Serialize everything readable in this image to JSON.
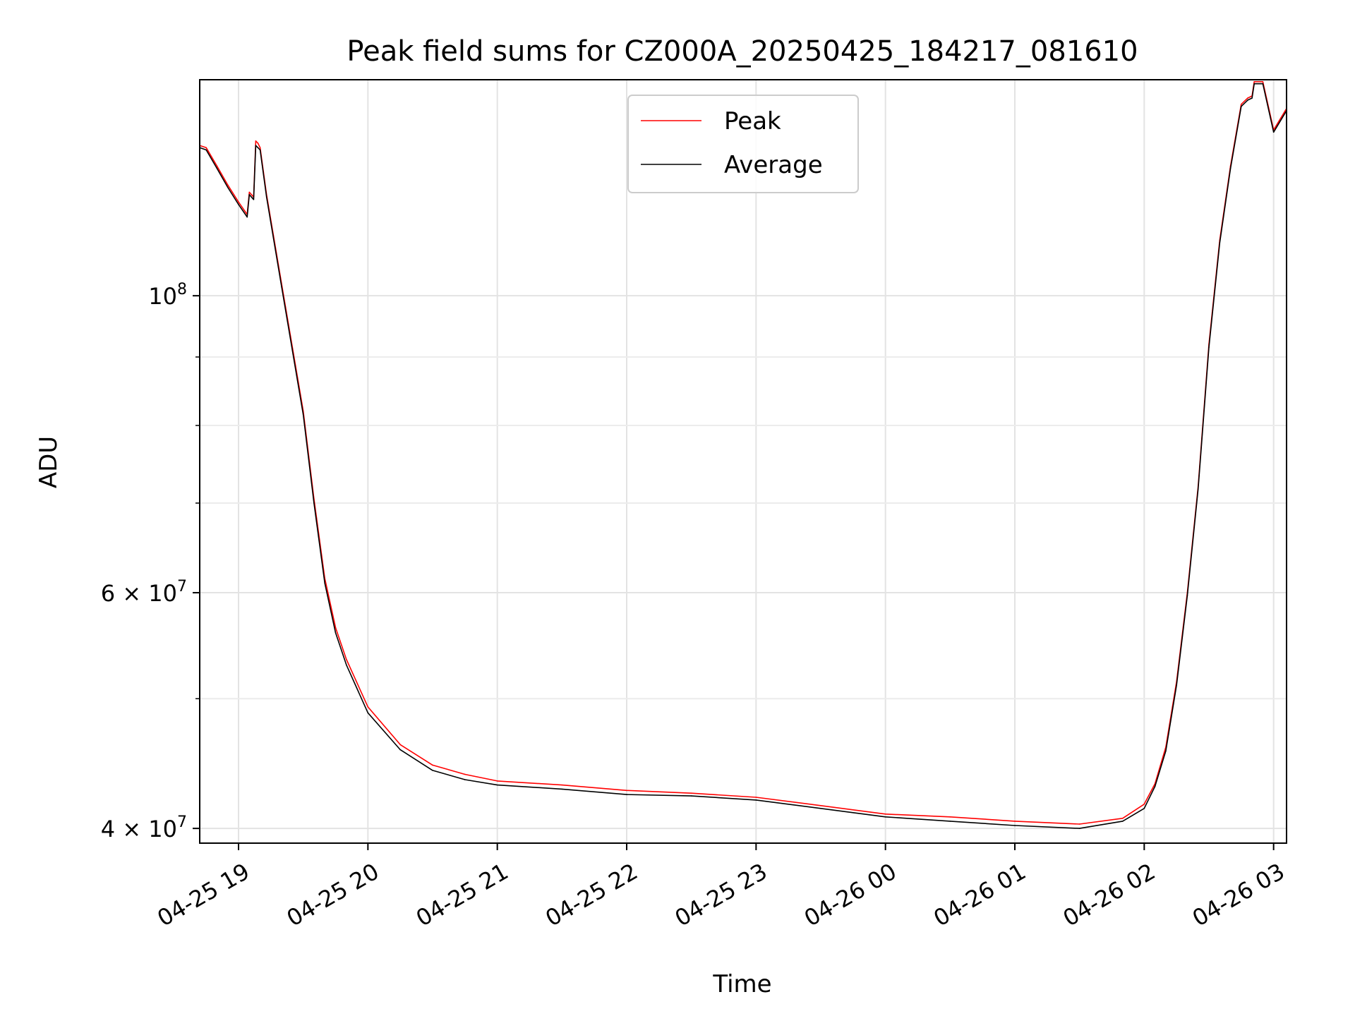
{
  "chart_data": {
    "type": "line",
    "title": "Peak field sums for CZ000A_20250425_184217_081610",
    "xlabel": "Time",
    "ylabel": "ADU",
    "x_unit": "datetime",
    "xlim": [
      "2025-04-25T18:42:00",
      "2025-04-26T03:06:00"
    ],
    "ylim": [
      39000000,
      145000000
    ],
    "y_scale": "log",
    "grid": true,
    "legend_position": "top-center",
    "x_ticks": [
      {
        "value": "2025-04-25T19:00:00",
        "label": "04-25 19"
      },
      {
        "value": "2025-04-25T20:00:00",
        "label": "04-25 20"
      },
      {
        "value": "2025-04-25T21:00:00",
        "label": "04-25 21"
      },
      {
        "value": "2025-04-25T22:00:00",
        "label": "04-25 22"
      },
      {
        "value": "2025-04-25T23:00:00",
        "label": "04-25 23"
      },
      {
        "value": "2025-04-26T00:00:00",
        "label": "04-26 00"
      },
      {
        "value": "2025-04-26T01:00:00",
        "label": "04-26 01"
      },
      {
        "value": "2025-04-26T02:00:00",
        "label": "04-26 02"
      },
      {
        "value": "2025-04-26T03:00:00",
        "label": "04-26 03"
      }
    ],
    "y_ticks": [
      {
        "value": 40000000,
        "mantissa": "4",
        "exp": "7"
      },
      {
        "value": 60000000,
        "mantissa": "6",
        "exp": "7"
      },
      {
        "value": 100000000,
        "mantissa": "",
        "exp": "8"
      }
    ],
    "y_minor_ticks": [
      50000000,
      70000000,
      80000000,
      90000000
    ],
    "series": [
      {
        "name": "Peak",
        "color": "#ff0000",
        "x": [
          "2025-04-25T18:42:00",
          "2025-04-25T18:45:00",
          "2025-04-25T18:50:00",
          "2025-04-25T18:55:00",
          "2025-04-25T19:00:00",
          "2025-04-25T19:04:00",
          "2025-04-25T19:05:00",
          "2025-04-25T19:07:00",
          "2025-04-25T19:08:00",
          "2025-04-25T19:09:00",
          "2025-04-25T19:10:00",
          "2025-04-25T19:13:00",
          "2025-04-25T19:20:00",
          "2025-04-25T19:30:00",
          "2025-04-25T19:35:00",
          "2025-04-25T19:40:00",
          "2025-04-25T19:45:00",
          "2025-04-25T19:50:00",
          "2025-04-25T20:00:00",
          "2025-04-25T20:15:00",
          "2025-04-25T20:30:00",
          "2025-04-25T20:45:00",
          "2025-04-25T21:00:00",
          "2025-04-25T21:30:00",
          "2025-04-25T22:00:00",
          "2025-04-25T22:30:00",
          "2025-04-25T23:00:00",
          "2025-04-25T23:30:00",
          "2025-04-26T00:00:00",
          "2025-04-26T00:30:00",
          "2025-04-26T01:00:00",
          "2025-04-26T01:30:00",
          "2025-04-26T01:50:00",
          "2025-04-26T02:00:00",
          "2025-04-26T02:05:00",
          "2025-04-26T02:10:00",
          "2025-04-26T02:15:00",
          "2025-04-26T02:20:00",
          "2025-04-26T02:25:00",
          "2025-04-26T02:30:00",
          "2025-04-26T02:35:00",
          "2025-04-26T02:40:00",
          "2025-04-26T02:45:00",
          "2025-04-26T02:48:00",
          "2025-04-26T02:50:00",
          "2025-04-26T02:51:00",
          "2025-04-26T02:55:00",
          "2025-04-26T03:00:00",
          "2025-04-26T03:06:00"
        ],
        "values": [
          129500000,
          129000000,
          125000000,
          121000000,
          117500000,
          115000000,
          119500000,
          118500000,
          130500000,
          130000000,
          129000000,
          119000000,
          102000000,
          82000000,
          70500000,
          61500000,
          56500000,
          53500000,
          49300000,
          46200000,
          44600000,
          43900000,
          43400000,
          43100000,
          42700000,
          42500000,
          42200000,
          41600000,
          41000000,
          40800000,
          40500000,
          40300000,
          40700000,
          41700000,
          43200000,
          46000000,
          51500000,
          60000000,
          72000000,
          92000000,
          110000000,
          125000000,
          139000000,
          140500000,
          141000000,
          144500000,
          144500000,
          133000000,
          138000000
        ]
      },
      {
        "name": "Average",
        "color": "#000000",
        "x": [
          "2025-04-25T18:42:00",
          "2025-04-25T18:45:00",
          "2025-04-25T18:50:00",
          "2025-04-25T18:55:00",
          "2025-04-25T19:00:00",
          "2025-04-25T19:04:00",
          "2025-04-25T19:05:00",
          "2025-04-25T19:07:00",
          "2025-04-25T19:08:00",
          "2025-04-25T19:09:00",
          "2025-04-25T19:10:00",
          "2025-04-25T19:13:00",
          "2025-04-25T19:20:00",
          "2025-04-25T19:30:00",
          "2025-04-25T19:35:00",
          "2025-04-25T19:40:00",
          "2025-04-25T19:45:00",
          "2025-04-25T19:50:00",
          "2025-04-25T20:00:00",
          "2025-04-25T20:15:00",
          "2025-04-25T20:30:00",
          "2025-04-25T20:45:00",
          "2025-04-25T21:00:00",
          "2025-04-25T21:30:00",
          "2025-04-25T22:00:00",
          "2025-04-25T22:30:00",
          "2025-04-25T23:00:00",
          "2025-04-25T23:30:00",
          "2025-04-26T00:00:00",
          "2025-04-26T00:30:00",
          "2025-04-26T01:00:00",
          "2025-04-26T01:30:00",
          "2025-04-26T01:50:00",
          "2025-04-26T02:00:00",
          "2025-04-26T02:05:00",
          "2025-04-26T02:10:00",
          "2025-04-26T02:15:00",
          "2025-04-26T02:20:00",
          "2025-04-26T02:25:00",
          "2025-04-26T02:30:00",
          "2025-04-26T02:35:00",
          "2025-04-26T02:40:00",
          "2025-04-26T02:45:00",
          "2025-04-26T02:48:00",
          "2025-04-26T02:50:00",
          "2025-04-26T02:51:00",
          "2025-04-26T02:55:00",
          "2025-04-26T03:00:00",
          "2025-04-26T03:06:00"
        ],
        "values": [
          129000000,
          128500000,
          124500000,
          120500000,
          117000000,
          114500000,
          119000000,
          118000000,
          129500000,
          129000000,
          128500000,
          118500000,
          101500000,
          81500000,
          70000000,
          61000000,
          56000000,
          53000000,
          48800000,
          45800000,
          44200000,
          43500000,
          43100000,
          42800000,
          42400000,
          42300000,
          42000000,
          41400000,
          40800000,
          40500000,
          40200000,
          40000000,
          40500000,
          41400000,
          43000000,
          45700000,
          51200000,
          59700000,
          71700000,
          91500000,
          109500000,
          124500000,
          138500000,
          140000000,
          140500000,
          144000000,
          144000000,
          132500000,
          137500000
        ]
      }
    ]
  }
}
